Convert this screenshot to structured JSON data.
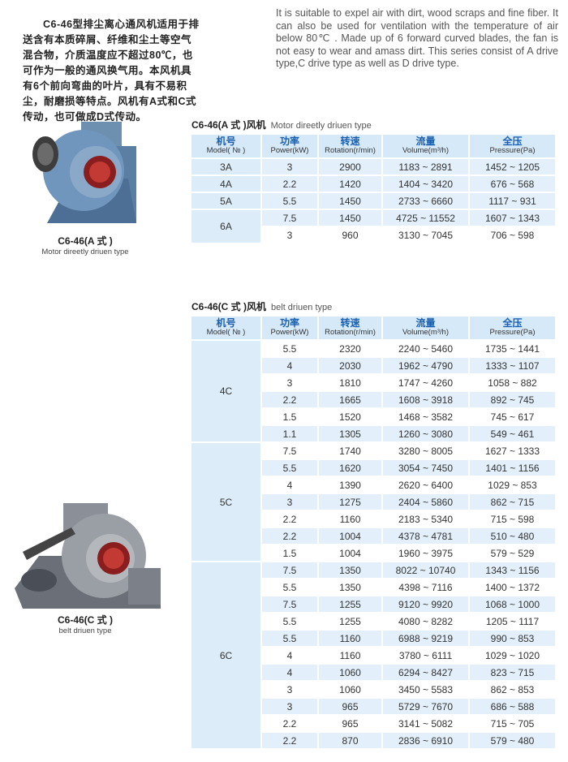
{
  "intro": {
    "cn": "C6-46型排尘离心通风机适用于排送含有本质碎屑、纤维和尘土等空气混合物，介质温度应不超过80℃，也可作为一般的通风换气用。本风机具有6个前向弯曲的叶片，具有不易积尘，耐磨损等特点。风机有A式和C式传动，也可做成D式传动。",
    "en": "It is suitable to expel air with dirt, wood scraps and fine fiber. It can also be used for ventilation with the temperature of air below 80℃ . Made up of 6 forward curved blades, the fan is not easy to wear and amass dirt. This series consist of A drive type,C drive type as well as D drive type."
  },
  "colors": {
    "header_bg": "#d6e9f8",
    "header_text": "#1a5fb0",
    "row_shade": "#e3f0fb"
  },
  "headers": [
    {
      "cn": "机号",
      "en": "Model( № )"
    },
    {
      "cn": "功率",
      "en": "Power(kW)"
    },
    {
      "cn": "转速",
      "en": "Rotation(r/min)"
    },
    {
      "cn": "流量",
      "en": "Volume(m³/h)"
    },
    {
      "cn": "全压",
      "en": "Pressure(Pa)"
    }
  ],
  "table_a": {
    "title_cn": "C6-46(A 式 )风机",
    "title_en": "Motor direetly driuen type",
    "caption": "C6-46(A 式 )",
    "caption_en": "Motor direetly driuen type",
    "groups": [
      {
        "model": "3A",
        "rows": [
          {
            "power": "3",
            "rotation": "2900",
            "volume": "1183 ~ 2891",
            "pressure": "1452 ~ 1205",
            "shaded": true
          }
        ]
      },
      {
        "model": "4A",
        "rows": [
          {
            "power": "2.2",
            "rotation": "1420",
            "volume": "1404 ~ 3420",
            "pressure": "676 ~ 568",
            "shaded": true
          }
        ]
      },
      {
        "model": "5A",
        "rows": [
          {
            "power": "5.5",
            "rotation": "1450",
            "volume": "2733 ~ 6660",
            "pressure": "1117 ~ 931",
            "shaded": true
          }
        ]
      },
      {
        "model": "6A",
        "rows": [
          {
            "power": "7.5",
            "rotation": "1450",
            "volume": "4725 ~ 11552",
            "pressure": "1607 ~ 1343",
            "shaded": true
          },
          {
            "power": "3",
            "rotation": "960",
            "volume": "3130 ~ 7045",
            "pressure": "706 ~ 598",
            "shaded": false
          }
        ]
      }
    ]
  },
  "table_c": {
    "title_cn": "C6-46(C 式 )风机",
    "title_en": "belt driuen type",
    "caption": "C6-46(C 式 )",
    "caption_en": "belt driuen type",
    "groups": [
      {
        "model": "4C",
        "rows": [
          {
            "power": "5.5",
            "rotation": "2320",
            "volume": "2240 ~ 5460",
            "pressure": "1735 ~ 1441"
          },
          {
            "power": "4",
            "rotation": "2030",
            "volume": "1962 ~ 4790",
            "pressure": "1333 ~ 1107"
          },
          {
            "power": "3",
            "rotation": "1810",
            "volume": "1747 ~ 4260",
            "pressure": "1058 ~ 882"
          },
          {
            "power": "2.2",
            "rotation": "1665",
            "volume": "1608 ~ 3918",
            "pressure": "892 ~ 745"
          },
          {
            "power": "1.5",
            "rotation": "1520",
            "volume": "1468 ~ 3582",
            "pressure": "745 ~ 617"
          },
          {
            "power": "1.1",
            "rotation": "1305",
            "volume": "1260 ~ 3080",
            "pressure": "549 ~ 461"
          }
        ]
      },
      {
        "model": "5C",
        "rows": [
          {
            "power": "7.5",
            "rotation": "1740",
            "volume": "3280 ~ 8005",
            "pressure": "1627 ~ 1333"
          },
          {
            "power": "5.5",
            "rotation": "1620",
            "volume": "3054 ~ 7450",
            "pressure": "1401 ~ 1156"
          },
          {
            "power": "4",
            "rotation": "1390",
            "volume": "2620 ~ 6400",
            "pressure": "1029 ~ 853"
          },
          {
            "power": "3",
            "rotation": "1275",
            "volume": "2404 ~ 5860",
            "pressure": "862 ~ 715"
          },
          {
            "power": "2.2",
            "rotation": "1160",
            "volume": "2183 ~ 5340",
            "pressure": "715 ~ 598"
          },
          {
            "power": "2.2",
            "rotation": "1004",
            "volume": "4378 ~ 4781",
            "pressure": "510 ~ 480"
          },
          {
            "power": "1.5",
            "rotation": "1004",
            "volume": "1960 ~ 3975",
            "pressure": "579 ~ 529"
          }
        ]
      },
      {
        "model": "6C",
        "rows": [
          {
            "power": "7.5",
            "rotation": "1350",
            "volume": "8022 ~ 10740",
            "pressure": "1343 ~ 1156"
          },
          {
            "power": "5.5",
            "rotation": "1350",
            "volume": "4398 ~ 7116",
            "pressure": "1400 ~ 1372"
          },
          {
            "power": "7.5",
            "rotation": "1255",
            "volume": "9120 ~ 9920",
            "pressure": "1068 ~ 1000"
          },
          {
            "power": "5.5",
            "rotation": "1255",
            "volume": "4080 ~ 8282",
            "pressure": "1205 ~ 1117"
          },
          {
            "power": "5.5",
            "rotation": "1160",
            "volume": "6988 ~ 9219",
            "pressure": "990 ~ 853"
          },
          {
            "power": "4",
            "rotation": "1160",
            "volume": "3780 ~ 6111",
            "pressure": "1029 ~ 1020"
          },
          {
            "power": "4",
            "rotation": "1060",
            "volume": "6294 ~ 8427",
            "pressure": "823 ~ 715"
          },
          {
            "power": "3",
            "rotation": "1060",
            "volume": "3450 ~ 5583",
            "pressure": "862 ~ 853"
          },
          {
            "power": "3",
            "rotation": "965",
            "volume": "5729 ~ 7670",
            "pressure": "686 ~ 588"
          },
          {
            "power": "2.2",
            "rotation": "965",
            "volume": "3141 ~ 5082",
            "pressure": "715 ~ 705"
          },
          {
            "power": "2.2",
            "rotation": "870",
            "volume": "2836 ~ 6910",
            "pressure": "579 ~ 480"
          }
        ]
      }
    ]
  }
}
